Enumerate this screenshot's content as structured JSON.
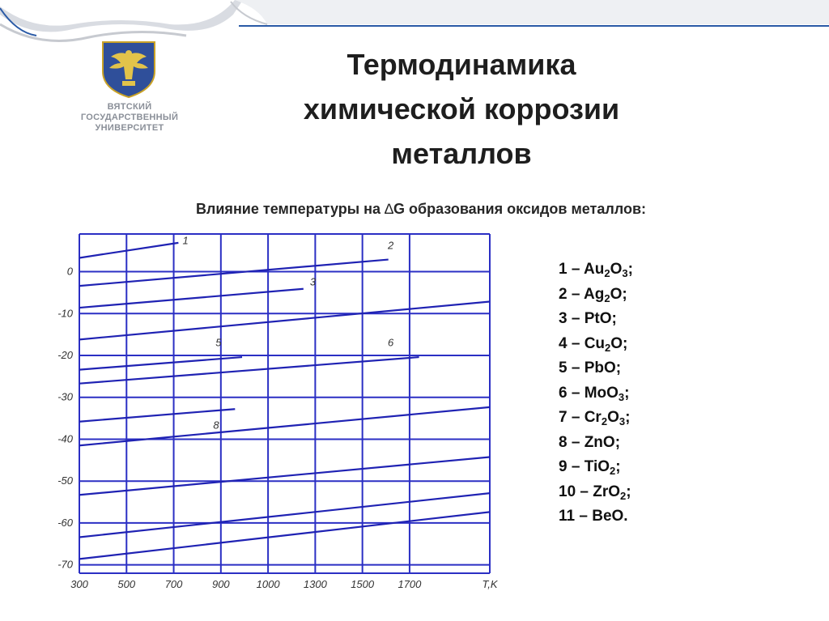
{
  "logo": {
    "lines": [
      "ВЯТСКИЙ",
      "ГОСУДАРСТВЕННЫЙ",
      "УНИВЕРСИТЕТ"
    ]
  },
  "slide": {
    "title_lines": [
      "Термодинамика",
      "химической коррозии",
      "металлов"
    ],
    "subtitle_before": "Влияние температуры на ",
    "delta_symbol": "∆",
    "subtitle_after": "G образования оксидов металлов:"
  },
  "legend": [
    {
      "num": "1",
      "parts": [
        [
          "Au",
          ""
        ],
        [
          "2",
          "sub"
        ],
        [
          "O",
          ""
        ],
        [
          "3",
          "sub"
        ],
        [
          ";",
          ""
        ]
      ]
    },
    {
      "num": "2",
      "parts": [
        [
          "Ag",
          ""
        ],
        [
          "2",
          "sub"
        ],
        [
          "O;",
          ""
        ]
      ]
    },
    {
      "num": "3",
      "parts": [
        [
          "PtO;",
          ""
        ]
      ]
    },
    {
      "num": "4",
      "parts": [
        [
          "Cu",
          ""
        ],
        [
          "2",
          "sub"
        ],
        [
          "O;",
          ""
        ]
      ]
    },
    {
      "num": "5",
      "parts": [
        [
          "PbO;",
          ""
        ]
      ]
    },
    {
      "num": "6",
      "parts": [
        [
          "MoO",
          ""
        ],
        [
          "3",
          "sub"
        ],
        [
          ";",
          ""
        ]
      ]
    },
    {
      "num": "7",
      "parts": [
        [
          "Cr",
          ""
        ],
        [
          "2",
          "sub"
        ],
        [
          "O",
          ""
        ],
        [
          "3",
          "sub"
        ],
        [
          ";",
          ""
        ]
      ]
    },
    {
      "num": "8",
      "parts": [
        [
          "ZnO;",
          ""
        ]
      ]
    },
    {
      "num": "9",
      "parts": [
        [
          "TiO",
          ""
        ],
        [
          "2",
          "sub"
        ],
        [
          ";",
          ""
        ]
      ]
    },
    {
      "num": "10",
      "parts": [
        [
          "ZrO",
          ""
        ],
        [
          "2",
          "sub"
        ],
        [
          ";",
          ""
        ]
      ]
    },
    {
      "num": "11",
      "parts": [
        [
          "BeO.",
          ""
        ]
      ]
    }
  ],
  "legend_separator": " – ",
  "colors": {
    "line": "#1f22b3",
    "grid": "#2b2fc4",
    "ribbon_fill": "#ffffff",
    "ribbon_accent": "#2a5aa6",
    "ribbon_shadow": "#c7cad0"
  },
  "chart_data": {
    "type": "line",
    "title": "",
    "xlabel": "T,K",
    "ylabel": "",
    "x_tick_labels": [
      "300",
      "500",
      "700",
      "900",
      "1000",
      "1300",
      "1500",
      "1700"
    ],
    "y_tick_labels": [
      "0",
      "-10",
      "-20",
      "-30",
      "-40",
      "-50",
      "-60",
      "-70"
    ],
    "x_tick_positions": [
      0,
      1,
      2,
      3,
      4,
      5,
      6,
      7
    ],
    "y_tick_values": [
      0,
      -10,
      -20,
      -30,
      -40,
      -50,
      -60,
      -70
    ],
    "xlim": [
      0,
      8.7
    ],
    "ylim": [
      -72,
      9
    ],
    "x_scale_note": "ticks are equally spaced categorical labels; point x values are in tick-index units",
    "grid": true,
    "series": [
      {
        "name": "1",
        "points": [
          [
            0,
            3.3
          ],
          [
            2.1,
            6.9
          ]
        ],
        "label_at": [
          2.25,
          6.6
        ]
      },
      {
        "name": "2",
        "points": [
          [
            0,
            -3.4
          ],
          [
            6.55,
            2.9
          ]
        ],
        "label_at": [
          6.6,
          5.4
        ]
      },
      {
        "name": "3",
        "points": [
          [
            0,
            -8.6
          ],
          [
            4.75,
            -4.1
          ]
        ],
        "label_at": [
          4.95,
          -3.3
        ]
      },
      {
        "name": "4",
        "points": [
          [
            0,
            -16.2
          ],
          [
            9.6,
            -6.2
          ]
        ],
        "label_at": [
          9.7,
          -3.5
        ]
      },
      {
        "name": "5",
        "points": [
          [
            0,
            -23.4
          ],
          [
            3.45,
            -20.4
          ]
        ],
        "label_at": [
          2.95,
          -17.8
        ]
      },
      {
        "name": "6",
        "points": [
          [
            0,
            -26.7
          ],
          [
            7.2,
            -20.4
          ]
        ],
        "label_at": [
          6.6,
          -17.8
        ]
      },
      {
        "name": "7",
        "points": [
          [
            0,
            -41.5
          ],
          [
            13.5,
            -27.3
          ]
        ],
        "label_at": [
          13.5,
          -24.5
        ]
      },
      {
        "name": "8",
        "points": [
          [
            0,
            -35.8
          ],
          [
            3.3,
            -32.8
          ]
        ],
        "label_at": [
          2.9,
          -37.5
        ]
      },
      {
        "name": "9",
        "points": [
          [
            0,
            -53.3
          ],
          [
            15.4,
            -37.3
          ]
        ],
        "label_at": [
          13.7,
          -33.5
        ]
      },
      {
        "name": "10",
        "points": [
          [
            0,
            -63.4
          ],
          [
            15.4,
            -44.8
          ]
        ],
        "label_at": [
          13.5,
          -42.2
        ]
      },
      {
        "name": "11",
        "points": [
          [
            0,
            -68.6
          ],
          [
            11.7,
            -53.5
          ]
        ],
        "label_at": [
          11.95,
          -50.8
        ]
      }
    ]
  }
}
